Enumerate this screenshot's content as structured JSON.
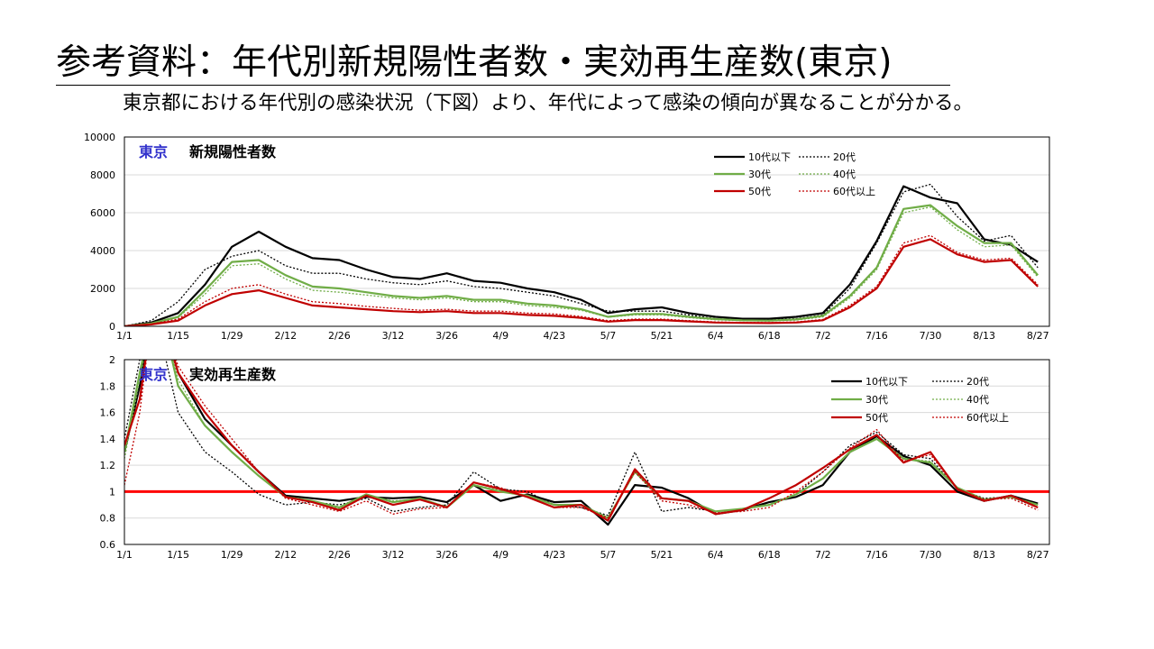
{
  "title": "参考資料：年代別新規陽性者数・実効再生産数(東京)",
  "subtitle": "東京都における年代別の感染状況（下図）より、年代によって感染の傾向が異なることが分かる。",
  "colors": {
    "teens_under": "#000000",
    "twenties": "#000000",
    "thirties": "#70ad47",
    "forties": "#70ad47",
    "fifties": "#c00000",
    "sixties_plus": "#c00000",
    "region_label": "#3333cc",
    "threshold_line": "#ff0000"
  },
  "chart_data": [
    {
      "type": "line",
      "title": "新規陽性者数",
      "region": "東京",
      "x_ticks": [
        "1/1",
        "1/15",
        "1/29",
        "2/12",
        "2/26",
        "3/12",
        "3/26",
        "4/9",
        "4/23",
        "5/7",
        "5/21",
        "6/4",
        "6/18",
        "7/2",
        "7/16",
        "7/30",
        "8/13",
        "8/27"
      ],
      "y_ticks": [
        "0",
        "2000",
        "4000",
        "6000",
        "8000",
        "10000"
      ],
      "ylim": [
        0,
        10000
      ],
      "legend": [
        "10代以下",
        "20代",
        "30代",
        "40代",
        "50代",
        "60代以上"
      ],
      "legend_position": "top-right",
      "x": [
        "1/1",
        "1/8",
        "1/15",
        "1/22",
        "1/29",
        "2/5",
        "2/12",
        "2/19",
        "2/26",
        "3/5",
        "3/12",
        "3/19",
        "3/26",
        "4/2",
        "4/9",
        "4/16",
        "4/23",
        "4/30",
        "5/7",
        "5/14",
        "5/21",
        "5/28",
        "6/4",
        "6/11",
        "6/18",
        "6/25",
        "7/2",
        "7/9",
        "7/16",
        "7/23",
        "7/30",
        "8/6",
        "8/13",
        "8/20",
        "8/27"
      ],
      "series": [
        {
          "name": "10代以下",
          "style": "solid",
          "values": [
            0,
            200,
            700,
            2200,
            4200,
            5000,
            4200,
            3600,
            3500,
            3000,
            2600,
            2500,
            2800,
            2400,
            2300,
            2000,
            1800,
            1400,
            700,
            900,
            1000,
            700,
            500,
            400,
            400,
            500,
            700,
            2200,
            4500,
            7400,
            6800,
            6500,
            4600,
            4300,
            3400
          ]
        },
        {
          "name": "20代",
          "style": "dotted",
          "values": [
            0,
            300,
            1300,
            3000,
            3700,
            4000,
            3200,
            2800,
            2800,
            2500,
            2300,
            2200,
            2400,
            2100,
            2000,
            1800,
            1600,
            1200,
            800,
            800,
            800,
            600,
            400,
            350,
            350,
            400,
            600,
            2000,
            4400,
            7100,
            7500,
            5800,
            4500,
            4800,
            3100
          ]
        },
        {
          "name": "30代",
          "style": "solid",
          "values": [
            0,
            150,
            500,
            1900,
            3400,
            3500,
            2700,
            2100,
            2000,
            1800,
            1600,
            1500,
            1600,
            1400,
            1400,
            1200,
            1100,
            900,
            500,
            650,
            650,
            500,
            380,
            320,
            300,
            360,
            550,
            1600,
            3100,
            6200,
            6400,
            5300,
            4400,
            4400,
            2700
          ]
        },
        {
          "name": "40代",
          "style": "dotted",
          "values": [
            0,
            140,
            460,
            1700,
            3200,
            3300,
            2500,
            1900,
            1800,
            1650,
            1500,
            1400,
            1500,
            1300,
            1300,
            1100,
            1000,
            850,
            480,
            600,
            600,
            460,
            350,
            300,
            280,
            330,
            500,
            1500,
            3000,
            6000,
            6300,
            5100,
            4200,
            4300,
            2600
          ]
        },
        {
          "name": "50代",
          "style": "solid",
          "values": [
            0,
            100,
            300,
            1100,
            1700,
            1900,
            1500,
            1100,
            1000,
            900,
            800,
            750,
            800,
            700,
            700,
            600,
            550,
            450,
            250,
            330,
            330,
            260,
            200,
            180,
            170,
            200,
            320,
            1000,
            2000,
            4200,
            4600,
            3800,
            3400,
            3500,
            2100
          ]
        },
        {
          "name": "60代以上",
          "style": "dotted",
          "values": [
            0,
            120,
            380,
            1300,
            2000,
            2200,
            1700,
            1300,
            1200,
            1050,
            950,
            850,
            900,
            800,
            800,
            700,
            650,
            520,
            300,
            380,
            380,
            300,
            230,
            200,
            190,
            230,
            360,
            1100,
            2100,
            4400,
            4800,
            3900,
            3500,
            3600,
            2200
          ]
        }
      ]
    },
    {
      "type": "line",
      "title": "実効再生産数",
      "region": "東京",
      "x_ticks": [
        "1/1",
        "1/15",
        "1/29",
        "2/12",
        "2/26",
        "3/12",
        "3/26",
        "4/9",
        "4/23",
        "5/7",
        "5/21",
        "6/4",
        "6/18",
        "7/2",
        "7/16",
        "7/30",
        "8/13",
        "8/27"
      ],
      "y_ticks": [
        "0.6",
        "0.8",
        "1",
        "1.2",
        "1.4",
        "1.6",
        "1.8",
        "2"
      ],
      "ylim": [
        0.6,
        2.0
      ],
      "reference_line": 1,
      "legend": [
        "10代以下",
        "20代",
        "30代",
        "40代",
        "50代",
        "60代以上"
      ],
      "legend_position": "top-right",
      "x": [
        "1/1",
        "1/5",
        "1/8",
        "1/11",
        "1/15",
        "1/22",
        "1/29",
        "2/5",
        "2/12",
        "2/19",
        "2/26",
        "3/5",
        "3/12",
        "3/19",
        "3/26",
        "4/2",
        "4/9",
        "4/16",
        "4/23",
        "4/30",
        "5/7",
        "5/14",
        "5/21",
        "5/28",
        "6/4",
        "6/11",
        "6/18",
        "6/25",
        "7/2",
        "7/9",
        "7/16",
        "7/23",
        "7/30",
        "8/6",
        "8/13",
        "8/20",
        "8/27"
      ],
      "series": [
        {
          "name": "10代以下",
          "style": "solid",
          "values": [
            1.3,
            1.8,
            2.3,
            2.3,
            1.9,
            1.55,
            1.35,
            1.15,
            0.97,
            0.95,
            0.93,
            0.96,
            0.95,
            0.96,
            0.92,
            1.05,
            0.93,
            0.98,
            0.92,
            0.93,
            0.75,
            1.05,
            1.03,
            0.95,
            0.83,
            0.86,
            0.92,
            0.96,
            1.05,
            1.3,
            1.42,
            1.27,
            1.2,
            1.0,
            0.93,
            0.97,
            0.91
          ]
        },
        {
          "name": "20代",
          "style": "dotted",
          "values": [
            1.4,
            2.0,
            2.3,
            2.1,
            1.6,
            1.3,
            1.15,
            0.98,
            0.9,
            0.92,
            0.9,
            0.95,
            0.85,
            0.88,
            0.9,
            1.15,
            1.02,
            1.0,
            0.9,
            0.88,
            0.82,
            1.3,
            0.85,
            0.88,
            0.85,
            0.87,
            0.9,
            0.98,
            1.15,
            1.35,
            1.45,
            1.28,
            1.25,
            1.02,
            0.95,
            0.96,
            0.88
          ]
        },
        {
          "name": "30代",
          "style": "solid",
          "values": [
            1.3,
            1.9,
            2.3,
            2.3,
            1.8,
            1.5,
            1.3,
            1.12,
            0.96,
            0.93,
            0.88,
            0.98,
            0.92,
            0.95,
            0.88,
            1.05,
            1.0,
            0.97,
            0.9,
            0.9,
            0.8,
            1.15,
            0.95,
            0.93,
            0.85,
            0.87,
            0.9,
            0.98,
            1.1,
            1.3,
            1.4,
            1.25,
            1.22,
            1.03,
            0.94,
            0.96,
            0.9
          ]
        },
        {
          "name": "40代",
          "style": "dotted",
          "values": [
            1.25,
            1.85,
            2.3,
            2.3,
            1.85,
            1.5,
            1.3,
            1.12,
            0.96,
            0.93,
            0.87,
            0.97,
            0.93,
            0.94,
            0.89,
            1.05,
            1.01,
            0.97,
            0.9,
            0.9,
            0.8,
            1.15,
            0.95,
            0.93,
            0.85,
            0.87,
            0.9,
            0.98,
            1.1,
            1.3,
            1.4,
            1.25,
            1.23,
            1.03,
            0.94,
            0.96,
            0.9
          ]
        },
        {
          "name": "50代",
          "style": "solid",
          "values": [
            1.35,
            1.7,
            2.3,
            2.3,
            1.9,
            1.6,
            1.35,
            1.15,
            0.96,
            0.92,
            0.86,
            0.97,
            0.9,
            0.94,
            0.88,
            1.07,
            1.02,
            0.96,
            0.88,
            0.9,
            0.78,
            1.17,
            0.95,
            0.93,
            0.83,
            0.86,
            0.95,
            1.05,
            1.18,
            1.32,
            1.43,
            1.22,
            1.3,
            1.02,
            0.93,
            0.97,
            0.88
          ]
        },
        {
          "name": "60代以上",
          "style": "dotted",
          "values": [
            1.05,
            1.6,
            2.3,
            2.3,
            1.95,
            1.65,
            1.4,
            1.15,
            0.95,
            0.9,
            0.85,
            0.93,
            0.83,
            0.87,
            0.88,
            1.07,
            1.03,
            0.96,
            0.88,
            0.88,
            0.8,
            1.15,
            0.93,
            0.9,
            0.84,
            0.85,
            0.88,
            1.0,
            1.15,
            1.33,
            1.47,
            1.23,
            1.28,
            1.02,
            0.94,
            0.95,
            0.86
          ]
        }
      ]
    }
  ]
}
